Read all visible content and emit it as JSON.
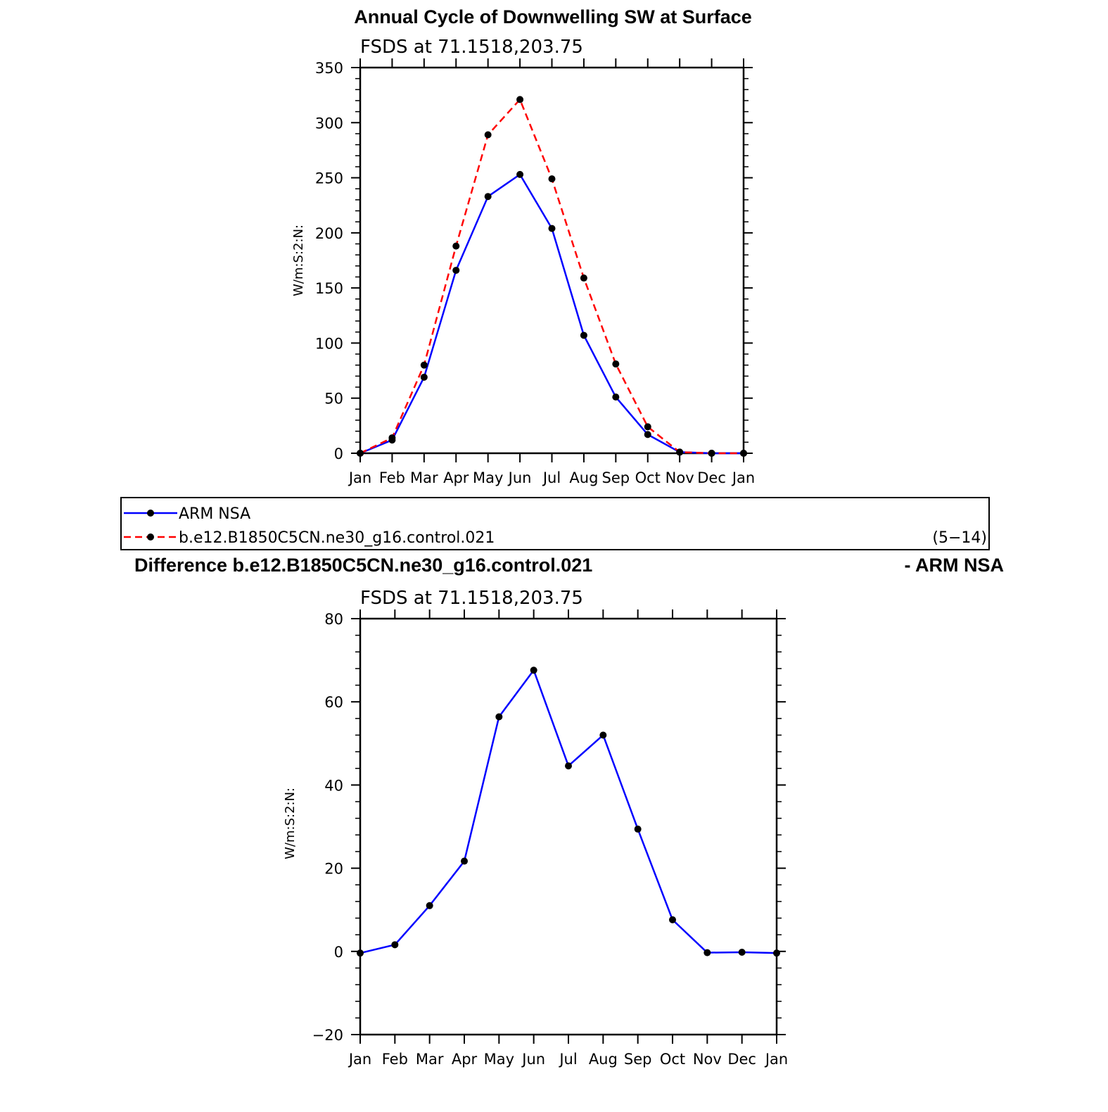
{
  "colors": {
    "obs": "#0000ff",
    "model": "#ff0000",
    "marker": "#000000",
    "diff": "#0000ff"
  },
  "top": {
    "title": "Annual Cycle of Downwelling SW at Surface",
    "subtitle": "FSDS at 71.1518,203.75",
    "ylabel": "W/m:S:2:N:"
  },
  "legend": {
    "entries": [
      "ARM NSA",
      "b.e12.B1850C5CN.ne30_g16.control.021"
    ],
    "years": "(5−14)"
  },
  "bottom": {
    "title_left": "Difference b.e12.B1850C5CN.ne30_g16.control.021",
    "title_right": "- ARM NSA",
    "subtitle": "FSDS at 71.1518,203.75",
    "ylabel": "W/m:S:2:N:"
  },
  "chart_data": [
    {
      "type": "line",
      "title": "Annual Cycle of Downwelling SW at Surface",
      "subtitle": "FSDS at 71.1518,203.75",
      "ylabel": "W/m:S:2:N:",
      "categories": [
        "Jan",
        "Feb",
        "Mar",
        "Apr",
        "May",
        "Jun",
        "Jul",
        "Aug",
        "Sep",
        "Oct",
        "Nov",
        "Dec",
        "Jan"
      ],
      "ylim": [
        0,
        350
      ],
      "yticks": [
        0,
        50,
        100,
        150,
        200,
        250,
        300,
        350
      ],
      "series": [
        {
          "name": "ARM NSA",
          "style": "solid",
          "values": [
            0,
            12,
            69,
            166,
            233,
            253,
            204,
            107,
            51,
            17,
            1,
            0,
            0
          ]
        },
        {
          "name": "b.e12.B1850C5CN.ne30_g16.control.021",
          "style": "dashed",
          "values": [
            0,
            14,
            80,
            188,
            289,
            321,
            249,
            159,
            81,
            24,
            1,
            0,
            0
          ]
        }
      ]
    },
    {
      "type": "line",
      "title": "Difference b.e12.B1850C5CN.ne30_g16.control.021 - ARM NSA",
      "subtitle": "FSDS at 71.1518,203.75",
      "ylabel": "W/m:S:2:N:",
      "categories": [
        "Jan",
        "Feb",
        "Mar",
        "Apr",
        "May",
        "Jun",
        "Jul",
        "Aug",
        "Sep",
        "Oct",
        "Nov",
        "Dec",
        "Jan"
      ],
      "ylim": [
        -20,
        80
      ],
      "yticks": [
        -20,
        0,
        20,
        40,
        60,
        80
      ],
      "series": [
        {
          "values": [
            -0.4,
            1.6,
            11,
            21.7,
            56.4,
            67.6,
            44.6,
            52,
            29.4,
            7.6,
            -0.3,
            -0.2,
            -0.4
          ]
        }
      ]
    }
  ]
}
